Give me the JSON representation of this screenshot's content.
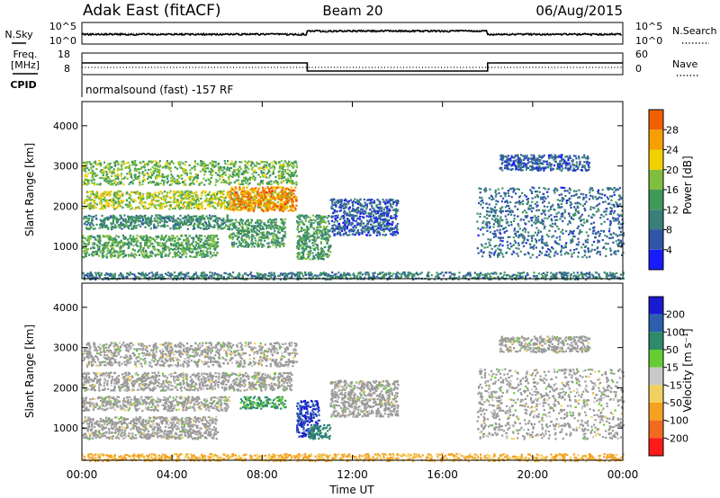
{
  "header": {
    "station": "Adak East (fitACF)",
    "beam": "Beam 20",
    "date": "06/Aug/2015"
  },
  "colors": {
    "power_scale": [
      "#1a1aff",
      "#2f55a8",
      "#3a7f7a",
      "#3f9a5a",
      "#7fbf3f",
      "#f0d000",
      "#f5a000",
      "#f06000",
      "#ff1a1a"
    ],
    "velocity_scale": [
      "#1a1ad0",
      "#2c5fae",
      "#2e8a68",
      "#66cc33",
      "#c8c8c8",
      "#f2d060",
      "#f5a020",
      "#f06a20",
      "#ff1a1a"
    ],
    "ground_scatter": "#9a9a9a"
  },
  "chart_data": [
    {
      "type": "line",
      "panel": "noise",
      "left_label": "N.Sky",
      "right_label": "N.Search",
      "left_ticks": [
        "10^5",
        "10^0"
      ],
      "right_ticks": [
        "10^5",
        "10^0"
      ],
      "x": [
        "00:00",
        "10:00",
        "18:00",
        "24:00"
      ],
      "values": [
        0.45,
        0.6,
        0.45,
        0.45
      ]
    },
    {
      "type": "line",
      "panel": "frequency",
      "left_label": "Freq.",
      "left_unit": "[MHz]",
      "right_label": "Nave",
      "left_ticks": [
        "18",
        "8"
      ],
      "right_ticks": [
        "60",
        "0"
      ],
      "series": [
        {
          "x": [
            "00:00",
            "10:00",
            "10:00",
            "18:00",
            "18:00",
            "24:00"
          ],
          "values": [
            12.5,
            12.5,
            8,
            8,
            12.5,
            12.5
          ]
        },
        {
          "x": [
            "00:00",
            "24:00"
          ],
          "values": [
            10,
            10
          ]
        }
      ]
    },
    {
      "type": "text",
      "panel": "cpid",
      "label": "CPID",
      "text": "normalsound (fast) -157 RF"
    },
    {
      "type": "heatmap",
      "panel": "power",
      "ylabel": "Slant Range [km]",
      "y_ticks": [
        "1000",
        "2000",
        "3000",
        "4000"
      ],
      "ylim": [
        200,
        4600
      ],
      "colorbar": {
        "label": "Power [dB]",
        "ticks": [
          "4",
          "8",
          "12",
          "16",
          "20",
          "24",
          "28"
        ]
      },
      "regions": [
        {
          "t0": 0.0,
          "t1": 9.3,
          "r0": 1950,
          "r1": 2400,
          "level": 0.55
        },
        {
          "t0": 6.5,
          "t1": 9.5,
          "r0": 1900,
          "r1": 2500,
          "level": 0.8
        },
        {
          "t0": 0.0,
          "t1": 9.5,
          "r0": 2550,
          "r1": 3150,
          "level": 0.45
        },
        {
          "t0": 0.0,
          "t1": 6.5,
          "r0": 1450,
          "r1": 1800,
          "level": 0.3
        },
        {
          "t0": 0.0,
          "t1": 6.0,
          "r0": 750,
          "r1": 1300,
          "level": 0.4
        },
        {
          "t0": 6.5,
          "t1": 9.0,
          "r0": 1000,
          "r1": 1700,
          "level": 0.35
        },
        {
          "t0": 9.5,
          "t1": 11.0,
          "r0": 700,
          "r1": 1800,
          "level": 0.35
        },
        {
          "t0": 11.0,
          "t1": 14.0,
          "r0": 1300,
          "r1": 2200,
          "level": 0.15
        },
        {
          "t0": 17.5,
          "t1": 24.0,
          "r0": 750,
          "r1": 2500,
          "level": 0.2
        },
        {
          "t0": 18.5,
          "t1": 22.5,
          "r0": 2900,
          "r1": 3300,
          "level": 0.15
        },
        {
          "t0": 0.0,
          "t1": 24.0,
          "r0": 200,
          "r1": 380,
          "level": 0.25
        }
      ]
    },
    {
      "type": "heatmap",
      "panel": "velocity",
      "ylabel": "Slant Range [km]",
      "y_ticks": [
        "1000",
        "2000",
        "3000",
        "4000"
      ],
      "ylim": [
        200,
        4600
      ],
      "x_ticks": [
        "00:00",
        "04:00",
        "08:00",
        "12:00",
        "16:00",
        "20:00",
        "00:00"
      ],
      "xlabel": "Time UT",
      "colorbar": {
        "label": "Velocity [m s⁻¹]",
        "ticks": [
          "200",
          "100",
          "50",
          "15",
          "-15",
          "-50",
          "-100",
          "-200"
        ]
      },
      "regions": [
        {
          "t0": 0.0,
          "t1": 9.3,
          "r0": 1950,
          "r1": 2400,
          "value": 0
        },
        {
          "t0": 0.0,
          "t1": 9.5,
          "r0": 2550,
          "r1": 3150,
          "value": 0
        },
        {
          "t0": 0.0,
          "t1": 6.0,
          "r0": 750,
          "r1": 1300,
          "value": 0
        },
        {
          "t0": 0.0,
          "t1": 6.5,
          "r0": 1450,
          "r1": 1800,
          "value": 0
        },
        {
          "t0": 7.0,
          "t1": 9.0,
          "r0": 1500,
          "r1": 1800,
          "value": 60
        },
        {
          "t0": 9.5,
          "t1": 10.5,
          "r0": 800,
          "r1": 1700,
          "value": 200
        },
        {
          "t0": 10.0,
          "t1": 11.0,
          "r0": 750,
          "r1": 1100,
          "value": 80
        },
        {
          "t0": 11.0,
          "t1": 14.0,
          "r0": 1300,
          "r1": 2200,
          "value": 0
        },
        {
          "t0": 17.5,
          "t1": 24.0,
          "r0": 750,
          "r1": 2500,
          "value": 0
        },
        {
          "t0": 18.5,
          "t1": 22.5,
          "r0": 2900,
          "r1": 3300,
          "value": 0
        },
        {
          "t0": 0.0,
          "t1": 24.0,
          "r0": 200,
          "r1": 380,
          "value": -60
        }
      ]
    }
  ]
}
